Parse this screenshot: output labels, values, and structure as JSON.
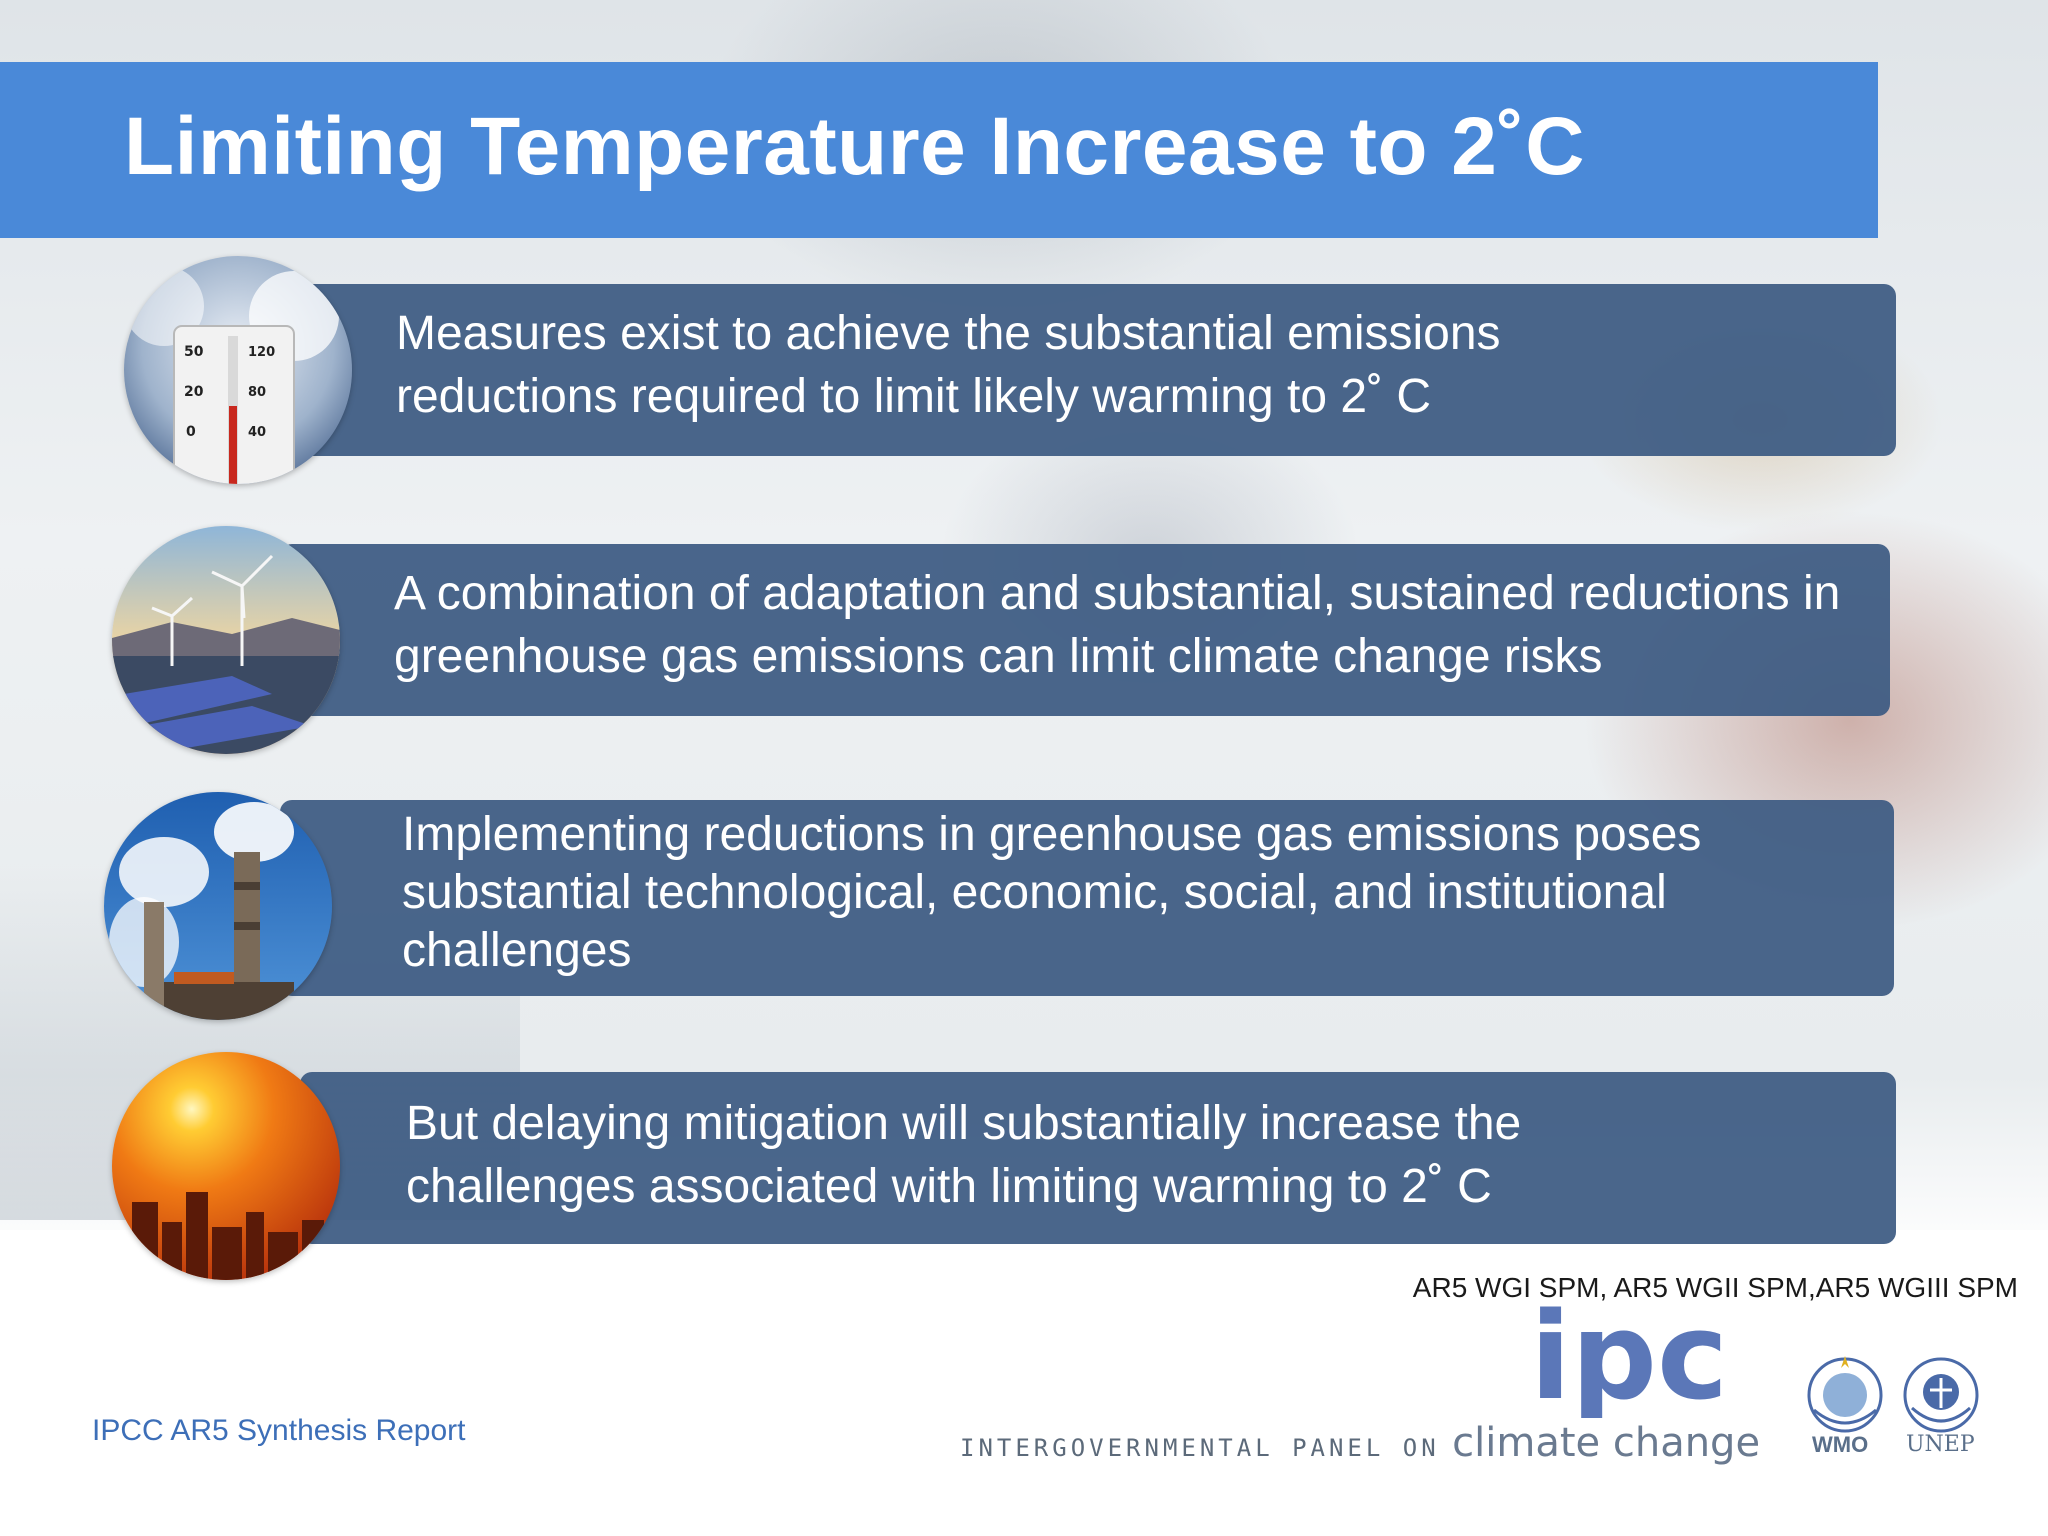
{
  "title": "Limiting Temperature Increase to 2˚C",
  "panels": [
    {
      "lines": [
        "Measures exist to achieve the substantial emissions",
        "reductions required to limit likely warming to 2˚  C"
      ],
      "image": "thermometer-photo"
    },
    {
      "lines": [
        "A combination of adaptation and substantial, sustained reductions in",
        "greenhouse gas emissions can limit climate change risks"
      ],
      "image": "wind-turbines-solar-photo"
    },
    {
      "lines": [
        "Implementing reductions in greenhouse gas emissions poses",
        "substantial technological, economic, social, and institutional",
        "challenges"
      ],
      "image": "smokestacks-photo"
    },
    {
      "lines": [
        "But delaying mitigation will substantially increase the",
        "challenges associated with limiting warming to 2˚  C"
      ],
      "image": "sun-over-city-photo"
    }
  ],
  "references": "AR5 WGI SPM, AR5 WGII SPM,AR5 WGIII SPM",
  "footer": "IPCC AR5 Synthesis Report",
  "logos": {
    "ipcc_word": "ipcc",
    "panel_name_small": "INTERGOVERNMENTAL PANEL ON",
    "panel_name_large": "climate change",
    "wmo": "WMO",
    "unep": "UNEP"
  },
  "colors": {
    "title_bar": "#4a89d8",
    "panel": "#3c5a82",
    "footer_text": "#3d6fb8"
  }
}
